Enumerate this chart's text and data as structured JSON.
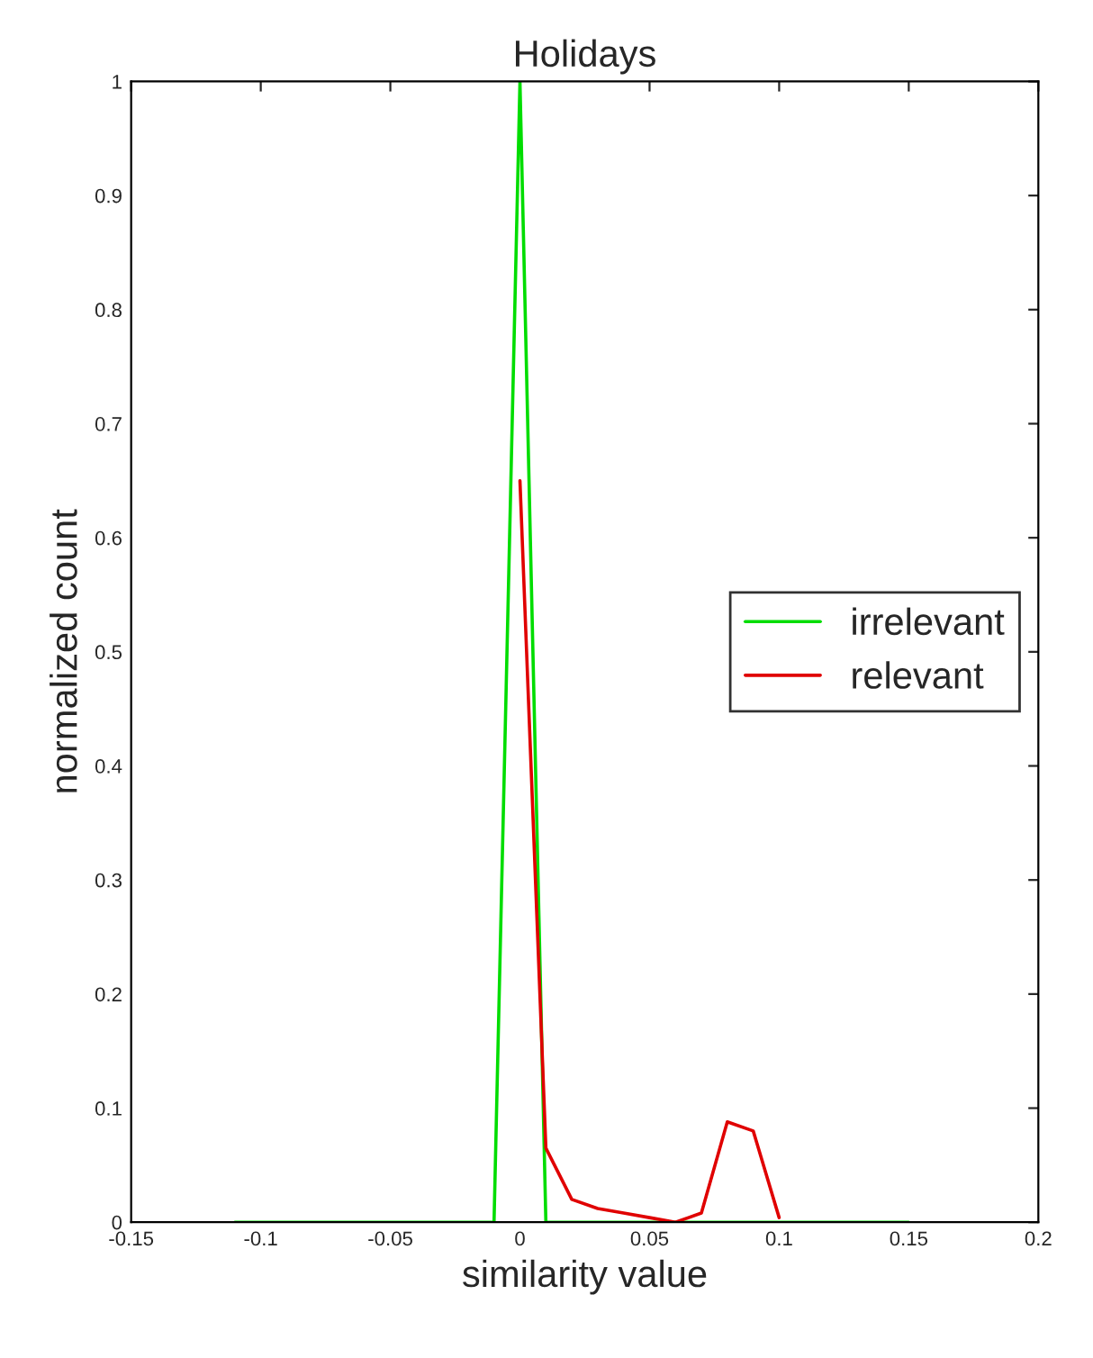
{
  "chart_data": {
    "type": "line",
    "title": "Holidays",
    "xlabel": "similarity value",
    "ylabel": "normalized count",
    "xlim": [
      -0.15,
      0.2
    ],
    "xticks": [
      -0.15,
      -0.1,
      -0.05,
      0,
      0.05,
      0.1,
      0.15,
      0.2
    ],
    "ylim": [
      0,
      1
    ],
    "yticks": [
      0,
      0.1,
      0.2,
      0.3,
      0.4,
      0.5,
      0.6,
      0.7,
      0.8,
      0.9,
      1
    ],
    "grid": false,
    "legend": "right",
    "marker": "none",
    "line_style": "solid",
    "series": [
      {
        "name": "irrelevant",
        "color": "#00dd00",
        "x": [
          -0.11,
          -0.1,
          -0.09,
          -0.08,
          -0.07,
          -0.06,
          -0.05,
          -0.04,
          -0.03,
          -0.02,
          -0.01,
          0,
          0.01,
          0.02,
          0.03,
          0.04,
          0.05,
          0.06,
          0.07,
          0.08,
          0.09,
          0.1,
          0.11,
          0.12,
          0.13,
          0.14,
          0.15
        ],
        "values": [
          0,
          0,
          0,
          0,
          0,
          0,
          0,
          0,
          0,
          0,
          0,
          1,
          0,
          0,
          0,
          0,
          0,
          0,
          0,
          0,
          0,
          0,
          0,
          0,
          0,
          0,
          0
        ]
      },
      {
        "name": "relevant",
        "color": "#e00000",
        "x": [
          0,
          0.01,
          0.02,
          0.03,
          0.04,
          0.05,
          0.06,
          0.07,
          0.08,
          0.09,
          0.1
        ],
        "values": [
          0.65,
          0.065,
          0.02,
          0.012,
          0.008,
          0.004,
          0.0,
          0.008,
          0.088,
          0.08,
          0.004
        ]
      }
    ]
  }
}
